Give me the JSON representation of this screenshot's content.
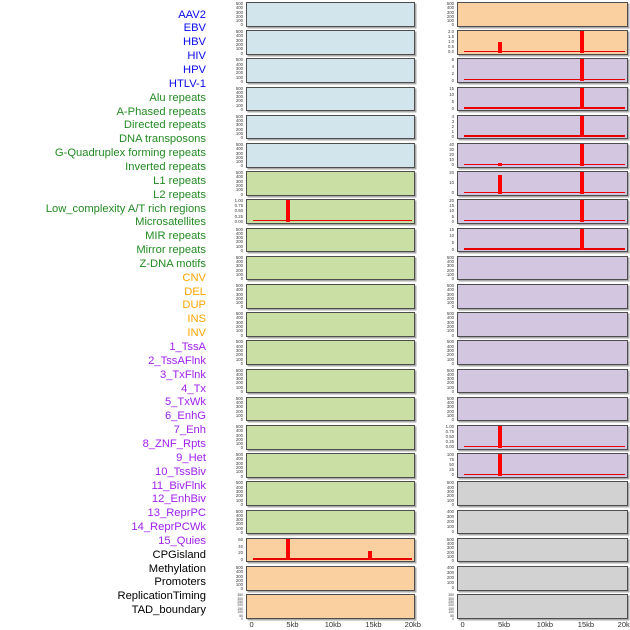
{
  "chart_data": {
    "type": "area",
    "layout": "small_multiples_two_columns_column_major",
    "title": "",
    "x_axis": {
      "tick_labels": [
        "0",
        "5kb",
        "10kb",
        "15kb",
        "20kb"
      ],
      "unit": "kb",
      "range_kb": [
        0,
        20
      ]
    },
    "series_color": "#ff0000",
    "baseline_color": "#e60000",
    "panel_border_color": "#4d4d4d",
    "y_default_ticks": [
      "500",
      "400",
      "300",
      "200",
      "100",
      "0"
    ],
    "y_dense_ticks": [
      "350",
      "300",
      "250",
      "200",
      "150",
      "100",
      "50",
      "0"
    ],
    "groups": {
      "virus": {
        "label_color": "#0a0af0",
        "panel_fill": "#d2e4ec"
      },
      "repeat": {
        "label_color": "#228b22",
        "panel_fill": "#c9dfa3"
      },
      "sv": {
        "label_color": "#ffa500",
        "panel_fill": "#fbd0a0"
      },
      "chromatin": {
        "label_color": "#a020f0",
        "panel_fill": "#d3c6e0"
      },
      "other": {
        "label_color": "#000000",
        "panel_fill": "#d2d2d2"
      }
    },
    "columns": {
      "left": [
        {
          "feature": "AAV2",
          "group": "virus",
          "yticks": "default"
        },
        {
          "feature": "EBV",
          "group": "virus",
          "yticks": "default"
        },
        {
          "feature": "HBV",
          "group": "virus",
          "yticks": "default"
        },
        {
          "feature": "HIV",
          "group": "virus",
          "yticks": "default"
        },
        {
          "feature": "HPV",
          "group": "virus",
          "yticks": "default"
        },
        {
          "feature": "HTLV-1",
          "group": "virus",
          "yticks": "default"
        },
        {
          "feature": "Alu repeats",
          "group": "repeat",
          "yticks": "default"
        },
        {
          "feature": "A-Phased repeats",
          "group": "repeat",
          "yticks": [
            "1.00",
            "0.75",
            "0.50",
            "0.25",
            "0.00"
          ],
          "baseline": true,
          "spikes": [
            {
              "x_kb": 4.5,
              "value": 1.0
            }
          ]
        },
        {
          "feature": "Directed repeats",
          "group": "repeat",
          "yticks": "default"
        },
        {
          "feature": "DNA transposons",
          "group": "repeat",
          "yticks": "default"
        },
        {
          "feature": "G-Quadruplex forming repeats",
          "group": "repeat",
          "yticks": "default"
        },
        {
          "feature": "Inverted repeats",
          "group": "repeat",
          "yticks": "default"
        },
        {
          "feature": "L1 repeats",
          "group": "repeat",
          "yticks": "default"
        },
        {
          "feature": "L2 repeats",
          "group": "repeat",
          "yticks": "default"
        },
        {
          "feature": "Low_complexity A/T rich regions",
          "group": "repeat",
          "yticks": "default"
        },
        {
          "feature": "Microsatellites",
          "group": "repeat",
          "yticks": "default"
        },
        {
          "feature": "MIR repeats",
          "group": "repeat",
          "yticks": "default"
        },
        {
          "feature": "Mirror repeats",
          "group": "repeat",
          "yticks": "default"
        },
        {
          "feature": "Z-DNA motifs",
          "group": "repeat",
          "yticks": "default"
        },
        {
          "feature": "CNV",
          "group": "sv",
          "yticks": [
            "60",
            "40",
            "20",
            "0"
          ],
          "baseline": true,
          "spikes": [
            {
              "x_kb": 4.5,
              "value": 60
            },
            {
              "x_kb": 14.7,
              "value": 25
            }
          ]
        },
        {
          "feature": "DEL",
          "group": "sv",
          "yticks": "default"
        },
        {
          "feature": "DUP",
          "group": "sv",
          "yticks": "dense"
        }
      ],
      "right": [
        {
          "feature": "INS",
          "group": "sv",
          "yticks": "default"
        },
        {
          "feature": "INV",
          "group": "sv",
          "yticks": [
            "2.0",
            "1.5",
            "1.0",
            "0.5",
            "0.0"
          ],
          "baseline": true,
          "spikes": [
            {
              "x_kb": 4.5,
              "value": 1.0
            },
            {
              "x_kb": 14.7,
              "value": 2.0
            }
          ]
        },
        {
          "feature": "1_TssA",
          "group": "chromatin",
          "yticks": [
            "6",
            "4",
            "2",
            "0"
          ],
          "baseline": true,
          "spikes": [
            {
              "x_kb": 14.7,
              "value": 6
            }
          ]
        },
        {
          "feature": "2_TssAFlnk",
          "group": "chromatin",
          "yticks": [
            "15",
            "10",
            "5",
            "0"
          ],
          "baseline": true,
          "spikes": [
            {
              "x_kb": 14.7,
              "value": 15
            }
          ]
        },
        {
          "feature": "3_TxFlnk",
          "group": "chromatin",
          "yticks": [
            "4",
            "3",
            "2",
            "1",
            "0"
          ],
          "baseline": true,
          "spikes": [
            {
              "x_kb": 14.7,
              "value": 4
            }
          ]
        },
        {
          "feature": "4_Tx",
          "group": "chromatin",
          "yticks": [
            "40",
            "30",
            "20",
            "10",
            "0"
          ],
          "baseline": true,
          "spikes": [
            {
              "x_kb": 4.5,
              "value": 5
            },
            {
              "x_kb": 14.7,
              "value": 40
            }
          ]
        },
        {
          "feature": "5_TxWk",
          "group": "chromatin",
          "yticks": [
            "20",
            "10",
            "0"
          ],
          "baseline": true,
          "spikes": [
            {
              "x_kb": 4.5,
              "value": 17
            },
            {
              "x_kb": 14.7,
              "value": 20
            }
          ]
        },
        {
          "feature": "6_EnhG",
          "group": "chromatin",
          "yticks": [
            "20",
            "15",
            "10",
            "5",
            "0"
          ],
          "baseline": true,
          "spikes": [
            {
              "x_kb": 14.7,
              "value": 20
            }
          ]
        },
        {
          "feature": "7_Enh",
          "group": "chromatin",
          "yticks": [
            "15",
            "10",
            "5",
            "0"
          ],
          "baseline": true,
          "spikes": [
            {
              "x_kb": 14.7,
              "value": 15
            }
          ]
        },
        {
          "feature": "8_ZNF_Rpts",
          "group": "chromatin",
          "yticks": "default"
        },
        {
          "feature": "9_Het",
          "group": "chromatin",
          "yticks": "default"
        },
        {
          "feature": "10_TssBiv",
          "group": "chromatin",
          "yticks": "default"
        },
        {
          "feature": "11_BivFlnk",
          "group": "chromatin",
          "yticks": "default"
        },
        {
          "feature": "12_EnhBiv",
          "group": "chromatin",
          "yticks": "default"
        },
        {
          "feature": "13_ReprPC",
          "group": "chromatin",
          "yticks": "default"
        },
        {
          "feature": "14_ReprPCWk",
          "group": "chromatin",
          "yticks": [
            "1.00",
            "0.75",
            "0.50",
            "0.25",
            "0.00"
          ],
          "baseline": true,
          "spikes": [
            {
              "x_kb": 4.5,
              "value": 1.0
            }
          ]
        },
        {
          "feature": "15_Quies",
          "group": "chromatin",
          "yticks": [
            "100",
            "75",
            "50",
            "25",
            "0"
          ],
          "baseline": true,
          "spikes": [
            {
              "x_kb": 4.5,
              "value": 100
            }
          ]
        },
        {
          "feature": "CPGisland",
          "group": "other",
          "yticks": "default"
        },
        {
          "feature": "Methylation",
          "group": "other",
          "yticks": [
            "400",
            "300",
            "200",
            "100",
            "0"
          ]
        },
        {
          "feature": "Promoters",
          "group": "other",
          "yticks": "default"
        },
        {
          "feature": "ReplicationTiming",
          "group": "other",
          "yticks": [
            "400",
            "300",
            "200",
            "100",
            "0"
          ]
        },
        {
          "feature": "TAD_boundary",
          "group": "other",
          "yticks": "dense"
        }
      ]
    }
  }
}
